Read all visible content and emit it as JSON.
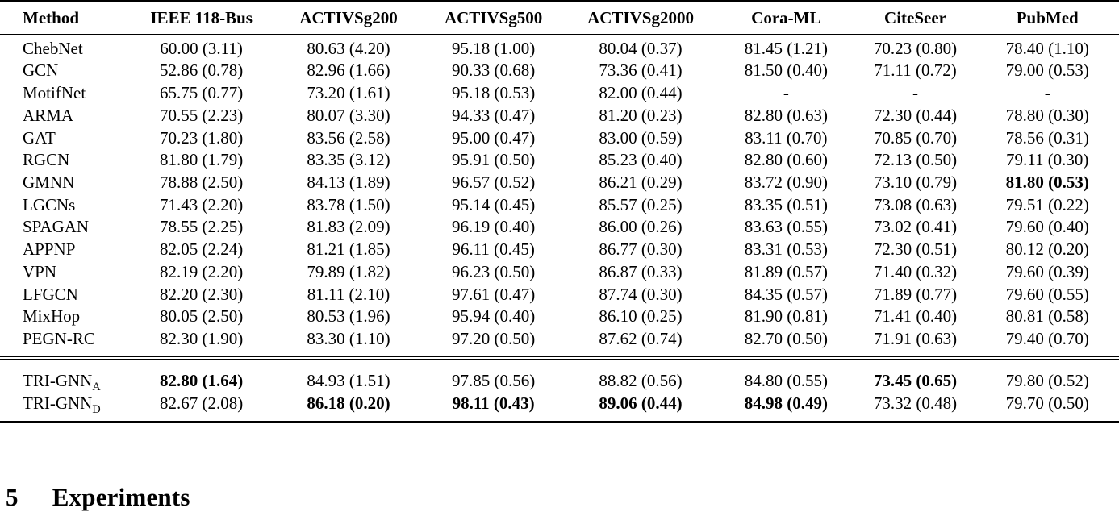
{
  "table": {
    "columns": [
      "Method",
      "IEEE 118-Bus",
      "ACTIVSg200",
      "ACTIVSg500",
      "ACTIVSg2000",
      "Cora-ML",
      "CiteSeer",
      "PubMed"
    ],
    "rows": [
      {
        "method": "ChebNet",
        "sub": "",
        "values": [
          "60.00 (3.11)",
          "80.63 (4.20)",
          "95.18 (1.00)",
          "80.04 (0.37)",
          "81.45 (1.21)",
          "70.23 (0.80)",
          "78.40 (1.10)"
        ],
        "bold": []
      },
      {
        "method": "GCN",
        "sub": "",
        "values": [
          "52.86 (0.78)",
          "82.96 (1.66)",
          "90.33 (0.68)",
          "73.36 (0.41)",
          "81.50 (0.40)",
          "71.11 (0.72)",
          "79.00 (0.53)"
        ],
        "bold": []
      },
      {
        "method": "MotifNet",
        "sub": "",
        "values": [
          "65.75 (0.77)",
          "73.20 (1.61)",
          "95.18 (0.53)",
          "82.00 (0.44)",
          "-",
          "-",
          "-"
        ],
        "bold": []
      },
      {
        "method": "ARMA",
        "sub": "",
        "values": [
          "70.55 (2.23)",
          "80.07 (3.30)",
          "94.33 (0.47)",
          "81.20 (0.23)",
          "82.80 (0.63)",
          "72.30 (0.44)",
          "78.80 (0.30)"
        ],
        "bold": []
      },
      {
        "method": "GAT",
        "sub": "",
        "values": [
          "70.23 (1.80)",
          "83.56 (2.58)",
          "95.00 (0.47)",
          "83.00 (0.59)",
          "83.11 (0.70)",
          "70.85 (0.70)",
          "78.56 (0.31)"
        ],
        "bold": []
      },
      {
        "method": "RGCN",
        "sub": "",
        "values": [
          "81.80 (1.79)",
          "83.35 (3.12)",
          "95.91 (0.50)",
          "85.23 (0.40)",
          "82.80 (0.60)",
          "72.13 (0.50)",
          "79.11 (0.30)"
        ],
        "bold": []
      },
      {
        "method": "GMNN",
        "sub": "",
        "values": [
          "78.88 (2.50)",
          "84.13 (1.89)",
          "96.57 (0.52)",
          "86.21 (0.29)",
          "83.72 (0.90)",
          "73.10 (0.79)",
          "81.80 (0.53)"
        ],
        "bold": [
          6
        ]
      },
      {
        "method": "LGCNs",
        "sub": "",
        "values": [
          "71.43 (2.20)",
          "83.78 (1.50)",
          "95.14 (0.45)",
          "85.57 (0.25)",
          "83.35 (0.51)",
          "73.08 (0.63)",
          "79.51 (0.22)"
        ],
        "bold": []
      },
      {
        "method": "SPAGAN",
        "sub": "",
        "values": [
          "78.55 (2.25)",
          "81.83 (2.09)",
          "96.19 (0.40)",
          "86.00 (0.26)",
          "83.63 (0.55)",
          "73.02 (0.41)",
          "79.60 (0.40)"
        ],
        "bold": []
      },
      {
        "method": "APPNP",
        "sub": "",
        "values": [
          "82.05 (2.24)",
          "81.21 (1.85)",
          "96.11 (0.45)",
          "86.77 (0.30)",
          "83.31 (0.53)",
          "72.30 (0.51)",
          "80.12 (0.20)"
        ],
        "bold": []
      },
      {
        "method": "VPN",
        "sub": "",
        "values": [
          "82.19 (2.20)",
          "79.89 (1.82)",
          "96.23 (0.50)",
          "86.87 (0.33)",
          "81.89 (0.57)",
          "71.40 (0.32)",
          "79.60 (0.39)"
        ],
        "bold": []
      },
      {
        "method": "LFGCN",
        "sub": "",
        "values": [
          "82.20 (2.30)",
          "81.11 (2.10)",
          "97.61 (0.47)",
          "87.74 (0.30)",
          "84.35 (0.57)",
          "71.89 (0.77)",
          "79.60 (0.55)"
        ],
        "bold": []
      },
      {
        "method": "MixHop",
        "sub": "",
        "values": [
          "80.05 (2.50)",
          "80.53 (1.96)",
          "95.94 (0.40)",
          "86.10 (0.25)",
          "81.90 (0.81)",
          "71.41 (0.40)",
          "80.81 (0.58)"
        ],
        "bold": []
      },
      {
        "method": "PEGN-RC",
        "sub": "",
        "values": [
          "82.30 (1.90)",
          "83.30 (1.10)",
          "97.20 (0.50)",
          "87.62 (0.74)",
          "82.70 (0.50)",
          "71.91 (0.63)",
          "79.40 (0.70)"
        ],
        "bold": []
      }
    ],
    "footer_rows": [
      {
        "method": "TRI-GNN",
        "sub": "A",
        "values": [
          "82.80 (1.64)",
          "84.93 (1.51)",
          "97.85 (0.56)",
          "88.82 (0.56)",
          "84.80 (0.55)",
          "73.45 (0.65)",
          "79.80 (0.52)"
        ],
        "bold": [
          0,
          5
        ]
      },
      {
        "method": "TRI-GNN",
        "sub": "D",
        "values": [
          "82.67 (2.08)",
          "86.18 (0.20)",
          "98.11 (0.43)",
          "89.06 (0.44)",
          "84.98 (0.49)",
          "73.32 (0.48)",
          "79.70 (0.50)"
        ],
        "bold": [
          1,
          2,
          3,
          4
        ]
      }
    ]
  },
  "section": {
    "number": "5",
    "title": "Experiments"
  }
}
